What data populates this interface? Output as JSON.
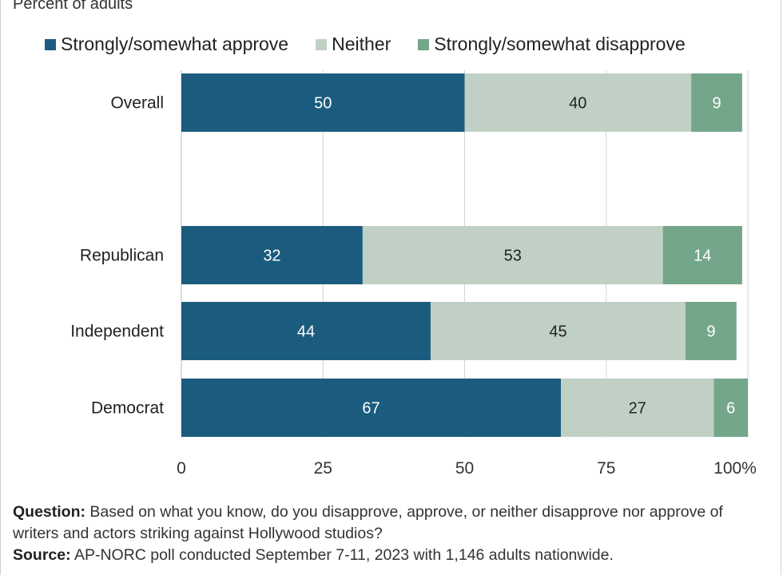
{
  "subtitle": "Percent of adults",
  "legend": [
    {
      "label": "Strongly/somewhat approve",
      "color": "#1b5c7e"
    },
    {
      "label": "Neither",
      "color": "#c0d0c5"
    },
    {
      "label": "Strongly/somewhat disapprove",
      "color": "#74a68a"
    }
  ],
  "footnote": {
    "question_label": "Question:",
    "question_text": "Based on what you know, do you disapprove, approve, or neither disapprove nor approve of writers and actors striking against Hollywood studios?",
    "source_label": "Source:",
    "source_text": "AP-NORC poll conducted September 7-11, 2023 with 1,146 adults nationwide."
  },
  "chart_data": {
    "type": "bar",
    "orientation": "horizontal",
    "stacked": true,
    "categories": [
      "Overall",
      "Republican",
      "Independent",
      "Democrat"
    ],
    "series": [
      {
        "name": "Strongly/somewhat approve",
        "values": [
          50,
          32,
          44,
          67
        ]
      },
      {
        "name": "Neither",
        "values": [
          40,
          53,
          45,
          27
        ]
      },
      {
        "name": "Strongly/somewhat disapprove",
        "values": [
          9,
          14,
          9,
          6
        ]
      }
    ],
    "xlim": [
      0,
      100
    ],
    "xticks": [
      0,
      25,
      50,
      75,
      100
    ],
    "xtick_labels": [
      "0",
      "25",
      "50",
      "75",
      "100%"
    ],
    "grid": true,
    "legend_position": "top"
  }
}
